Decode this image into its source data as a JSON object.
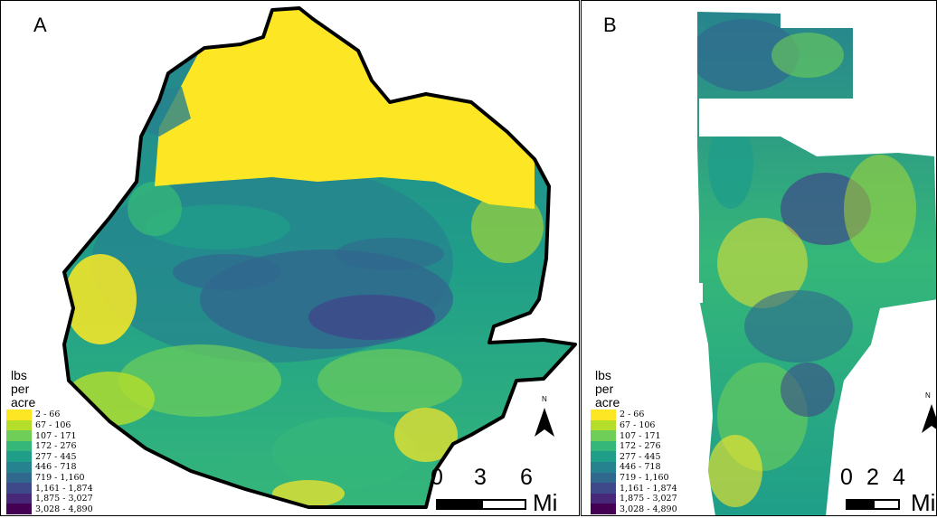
{
  "panels": {
    "a": {
      "label": "A"
    },
    "b": {
      "label": "B"
    }
  },
  "legend": {
    "title_lines": [
      "lbs",
      "per",
      "acre"
    ],
    "classes": [
      {
        "label": "2 - 66",
        "color": "#fde725"
      },
      {
        "label": "67 - 106",
        "color": "#b5de2b"
      },
      {
        "label": "107 - 171",
        "color": "#6ece58"
      },
      {
        "label": "172 - 276",
        "color": "#35b779"
      },
      {
        "label": "277 - 445",
        "color": "#1f9e89"
      },
      {
        "label": "446 - 718",
        "color": "#26828e"
      },
      {
        "label": "719 - 1,160",
        "color": "#31688e"
      },
      {
        "label": "1,161 - 1,874",
        "color": "#3e4989"
      },
      {
        "label": "1,875 - 3,027",
        "color": "#482878"
      },
      {
        "label": "3,028 - 4,890",
        "color": "#440154"
      }
    ]
  },
  "north_arrow": {
    "label": "N"
  },
  "scale_a": {
    "ticks": [
      "0",
      "3",
      "6"
    ],
    "unit": "Mi"
  },
  "scale_b": {
    "ticks": [
      "0",
      "2",
      "4"
    ],
    "unit": "Mi"
  }
}
